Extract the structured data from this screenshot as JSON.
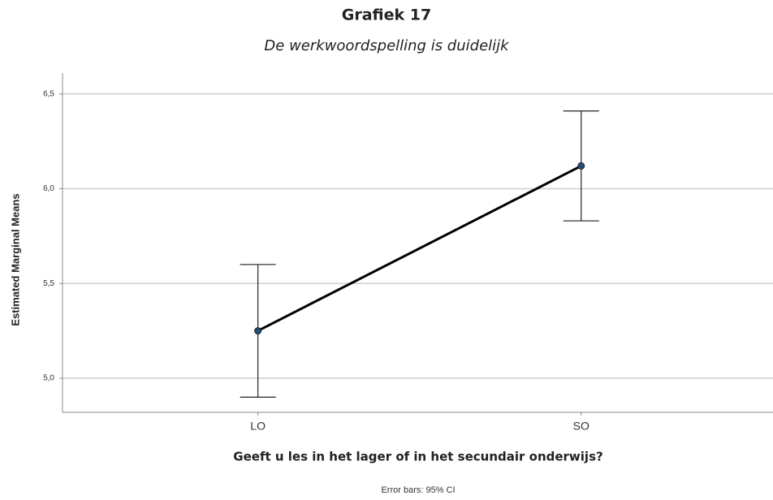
{
  "chart_data": {
    "type": "line",
    "title": "Grafiek 17",
    "subtitle": "De werkwoordspelling is duidelijk",
    "x_label": "Geeft u les in het lager of in het secundair onderwijs?",
    "y_label": "Estimated Marginal Means",
    "note": "Error bars: 95% CI",
    "categories": [
      "LO",
      "SO"
    ],
    "series": [
      {
        "name": null,
        "color": "#000000",
        "marker_color": "#1f4e79",
        "values": [
          5.25,
          6.12
        ],
        "errors": [
          0.35,
          0.29
        ]
      }
    ],
    "ylim": [
      4.82,
      6.61
    ],
    "yticks": [
      {
        "value": 5.0,
        "label": "5,0"
      },
      {
        "value": 5.5,
        "label": "5,5"
      },
      {
        "value": 6.0,
        "label": "6,0"
      },
      {
        "value": 6.5,
        "label": "6,5"
      }
    ],
    "grid": true
  }
}
